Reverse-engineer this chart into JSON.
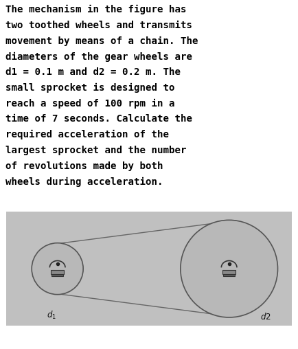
{
  "text_lines": [
    "The mechanism in the figure has",
    "two toothed wheels and transmits",
    "movement by means of a chain. The",
    "diameters of the gear wheels are",
    "d1 = 0.1 m and d2 = 0.2 m. The",
    "small sprocket is designed to",
    "reach a speed of 100 rpm in a",
    "time of 7 seconds. Calculate the",
    "required acceleration of the",
    "largest sprocket and the number",
    "of revolutions made by both",
    "wheels during acceleration."
  ],
  "text_fontsize": 10.2,
  "text_color": "#000000",
  "bg_color": "#ffffff",
  "diagram_bg": "#c0c0c0",
  "wheel_fill": "#b8b8b8",
  "wheel_edge": "#555555",
  "chain_color": "#666666",
  "hub_fill": "#888888",
  "hub_edge": "#333333",
  "dot_color": "#222222"
}
